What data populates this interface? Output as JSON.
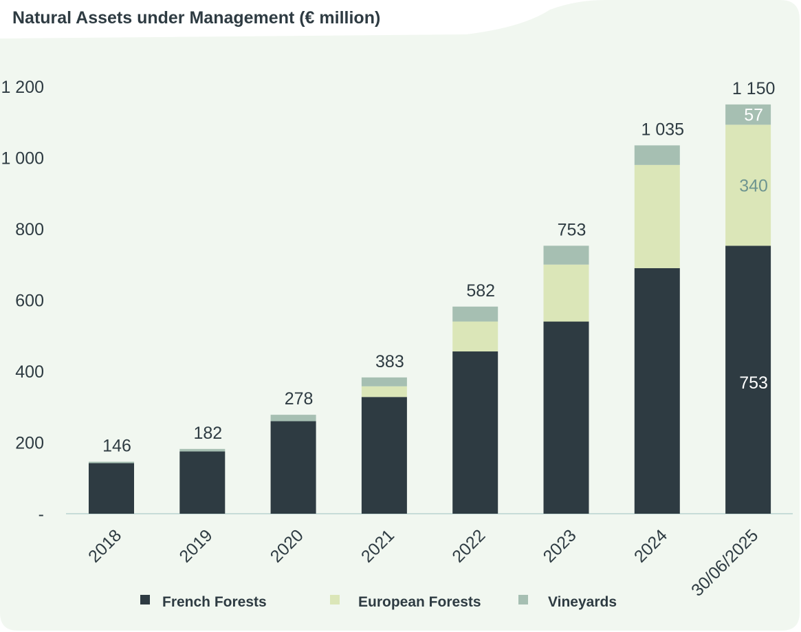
{
  "page": {
    "title": "Natural Assets under Management (€ million)"
  },
  "colors": {
    "panel_bg": "#f1f7f0",
    "french": "#2e3b42",
    "european": "#dbe6b8",
    "vineyards": "#a6bfb2",
    "text": "#2e3b42"
  },
  "chart_data": {
    "type": "bar",
    "stacked": true,
    "title": "Natural Assets under Management (€ million)",
    "categories": [
      "2018",
      "2019",
      "2020",
      "2021",
      "2022",
      "2023",
      "2024",
      "30/06/2025"
    ],
    "series": [
      {
        "name": "French Forests",
        "values": [
          142,
          175,
          260,
          328,
          456,
          540,
          690,
          753
        ]
      },
      {
        "name": "European Forests",
        "values": [
          0,
          0,
          0,
          30,
          84,
          160,
          290,
          340
        ]
      },
      {
        "name": "Vineyards",
        "values": [
          4,
          7,
          18,
          25,
          42,
          53,
          55,
          57
        ]
      }
    ],
    "totals": [
      "146",
      "182",
      "278",
      "383",
      "582",
      "753",
      "1 035",
      "1 150"
    ],
    "segment_labels": [
      {
        "category": "30/06/2025",
        "series": "French Forests",
        "text": "753"
      },
      {
        "category": "30/06/2025",
        "series": "European Forests",
        "text": "340"
      },
      {
        "category": "30/06/2025",
        "series": "Vineyards",
        "text": "57"
      }
    ],
    "y_ticks": [
      {
        "value": 0,
        "label": "-"
      },
      {
        "value": 200,
        "label": "200"
      },
      {
        "value": 400,
        "label": "400"
      },
      {
        "value": 600,
        "label": "600"
      },
      {
        "value": 800,
        "label": "800"
      },
      {
        "value": 1000,
        "label": "1 000"
      },
      {
        "value": 1200,
        "label": "1 200"
      }
    ],
    "ylim": [
      0,
      1200
    ],
    "grid": false,
    "legend_position": "bottom"
  }
}
